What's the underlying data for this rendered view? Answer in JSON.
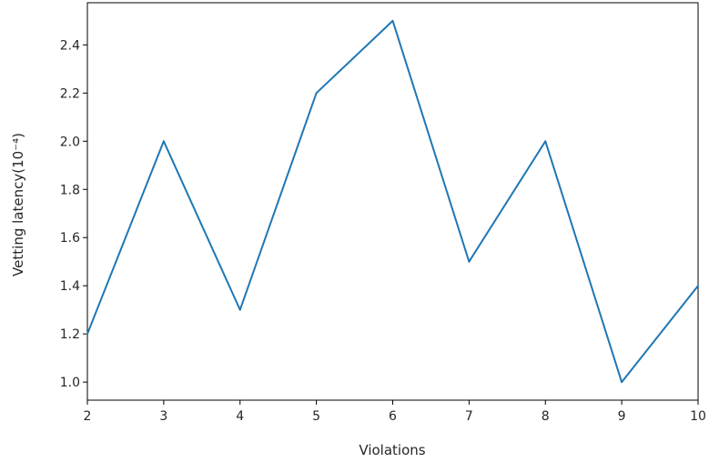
{
  "chart_data": {
    "type": "line",
    "x": [
      2,
      3,
      4,
      5,
      6,
      7,
      8,
      9,
      10
    ],
    "series": [
      {
        "values": [
          1.2,
          2.0,
          1.3,
          2.2,
          2.5,
          1.5,
          2.0,
          1.0,
          1.4
        ],
        "color": "#1f77b4"
      }
    ],
    "xlabel": "Violations",
    "ylabel": "Vetting latency(10⁻⁴)",
    "xlim": [
      2,
      10
    ],
    "ylim": [
      0.925,
      2.575
    ],
    "x_ticks": [
      "2",
      "3",
      "4",
      "5",
      "6",
      "7",
      "8",
      "9",
      "10"
    ],
    "y_ticks": [
      "1.0",
      "1.2",
      "1.4",
      "1.6",
      "1.8",
      "2.0",
      "2.2",
      "2.4"
    ],
    "grid": false,
    "legend": false
  }
}
